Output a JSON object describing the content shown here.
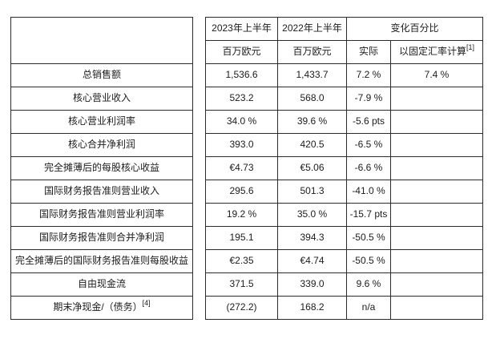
{
  "page": {
    "background": "#ffffff",
    "border_color": "#2b2b2b",
    "text_color": "#1c1c1c"
  },
  "table": {
    "header": {
      "period_2023": "2023年上半年",
      "period_2022": "2022年上半年",
      "change_group": "变化百分比",
      "unit_2023": "百万欧元",
      "unit_2022": "百万欧元",
      "change_actual": "实际",
      "change_cer": "以固定汇率计算",
      "change_cer_superscript": "[1]"
    },
    "rows": [
      {
        "label": "总销售额",
        "v2023": "1,536.6",
        "v2022": "1,433.7",
        "actual": "7.2 %",
        "cer": "7.4 %"
      },
      {
        "label": "核心营业收入",
        "v2023": "523.2",
        "v2022": "568.0",
        "actual": "-7.9 %",
        "cer": ""
      },
      {
        "label": "核心营业利润率",
        "v2023": "34.0 %",
        "v2022": "39.6 %",
        "actual": "-5.6 pts",
        "cer": ""
      },
      {
        "label": "核心合并净利润",
        "v2023": "393.0",
        "v2022": "420.5",
        "actual": "-6.5 %",
        "cer": ""
      },
      {
        "label": "完全摊薄后的每股核心收益",
        "v2023": "€4.73",
        "v2022": "€5.06",
        "actual": "-6.6 %",
        "cer": ""
      },
      {
        "label": "国际财务报告准则营业收入",
        "v2023": "295.6",
        "v2022": "501.3",
        "actual": "-41.0 %",
        "cer": ""
      },
      {
        "label": "国际财务报告准则营业利润率",
        "v2023": "19.2 %",
        "v2022": "35.0 %",
        "actual": "-15.7 pts",
        "cer": ""
      },
      {
        "label": "国际财务报告准则合并净利润",
        "v2023": "195.1",
        "v2022": "394.3",
        "actual": "-50.5 %",
        "cer": ""
      },
      {
        "label": "完全摊薄后的国际财务报告准则每股收益",
        "v2023": "€2.35",
        "v2022": "€4.74",
        "actual": "-50.5 %",
        "cer": ""
      },
      {
        "label": "自由现金流",
        "v2023": "371.5",
        "v2022": "339.0",
        "actual": "9.6 %",
        "cer": ""
      },
      {
        "label": "期末净现金/（债务）",
        "label_superscript": "[4]",
        "v2023": "(272.2)",
        "v2022": "168.2",
        "actual": "n/a",
        "cer": ""
      }
    ]
  }
}
